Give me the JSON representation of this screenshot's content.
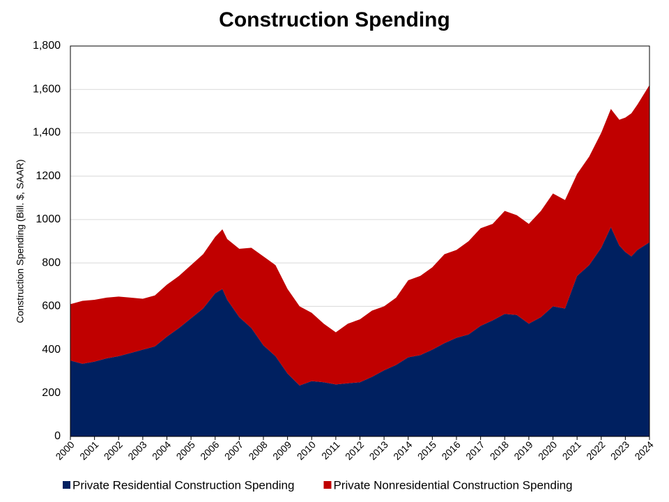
{
  "chart_data": {
    "type": "area",
    "stacked": true,
    "title": "Construction Spending",
    "y_label": "Construction Spending (Bill. $, SAAR)",
    "x": [
      2000,
      2000.5,
      2001,
      2001.5,
      2002,
      2002.5,
      2003,
      2003.5,
      2004,
      2004.5,
      2005,
      2005.5,
      2006,
      2006.3,
      2006.5,
      2007,
      2007.5,
      2008,
      2008.5,
      2009,
      2009.5,
      2010,
      2010.5,
      2011,
      2011.5,
      2012,
      2012.5,
      2013,
      2013.5,
      2014,
      2014.5,
      2015,
      2015.5,
      2016,
      2016.5,
      2017,
      2017.5,
      2018,
      2018.5,
      2019,
      2019.5,
      2020,
      2020.5,
      2021,
      2021.5,
      2022,
      2022.4,
      2022.75,
      2023,
      2023.25,
      2023.5,
      2024
    ],
    "series": [
      {
        "name": "Private Residential Construction Spending",
        "color": "#002060",
        "values": [
          350,
          335,
          345,
          360,
          370,
          385,
          400,
          415,
          460,
          500,
          545,
          590,
          660,
          680,
          630,
          550,
          500,
          420,
          370,
          290,
          235,
          255,
          250,
          240,
          245,
          250,
          275,
          305,
          330,
          365,
          375,
          400,
          430,
          455,
          470,
          510,
          535,
          565,
          560,
          520,
          550,
          600,
          590,
          740,
          790,
          870,
          965,
          880,
          850,
          830,
          860,
          895
        ]
      },
      {
        "name": "Private Nonresidential Construction Spending",
        "color": "#c00000",
        "values": [
          260,
          290,
          285,
          280,
          275,
          255,
          235,
          235,
          240,
          240,
          245,
          250,
          260,
          275,
          280,
          315,
          370,
          410,
          420,
          390,
          365,
          315,
          270,
          240,
          275,
          290,
          305,
          295,
          310,
          355,
          365,
          380,
          410,
          405,
          430,
          450,
          445,
          475,
          460,
          460,
          490,
          520,
          500,
          470,
          500,
          530,
          545,
          580,
          620,
          660,
          670,
          725
        ]
      }
    ],
    "xlim": [
      2000,
      2024
    ],
    "xticks": [
      2000,
      2001,
      2002,
      2003,
      2004,
      2005,
      2006,
      2007,
      2008,
      2009,
      2010,
      2011,
      2012,
      2013,
      2014,
      2015,
      2016,
      2017,
      2018,
      2019,
      2020,
      2021,
      2022,
      2023,
      2024
    ],
    "ylim": [
      0,
      1800
    ],
    "yticks": [
      0,
      200,
      400,
      600,
      800,
      1000,
      1200,
      {
        "value": 1400,
        "label": "1,400"
      },
      {
        "value": 1600,
        "label": "1,600"
      },
      {
        "value": 1800,
        "label": "1,800"
      }
    ],
    "grid": true,
    "legend": "bottom"
  }
}
